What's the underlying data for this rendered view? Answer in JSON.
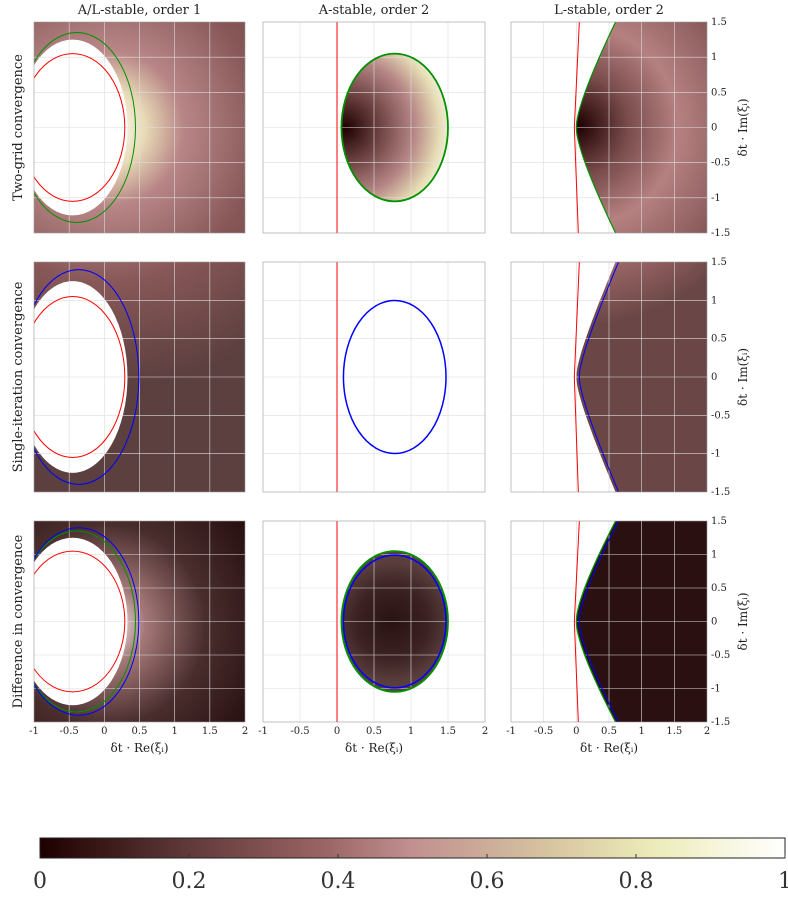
{
  "figure": {
    "column_titles": [
      "A/L-stable, order 1",
      "A-stable, order 2",
      "L-stable, order 2"
    ],
    "row_titles": [
      "Two-grid convergence",
      "Single-iteration convergence",
      "Difference in convergence"
    ],
    "xlabel": "δt · Re(ξᵢ)",
    "ylabel": "δt · Im(ξᵢ)"
  },
  "chart_data": {
    "type": "heatmap",
    "xlim": [
      -1,
      2
    ],
    "ylim": [
      -1.5,
      1.5
    ],
    "x_ticks": [
      "-1",
      "-0.5",
      "0",
      "0.5",
      "1",
      "1.5",
      "2"
    ],
    "y_ticks": [
      "1.5",
      "1",
      "0.5",
      "0",
      "-0.5",
      "-1",
      "-1.5"
    ],
    "grid": true,
    "colormap": [
      "#1e0000",
      "#5a3434",
      "#8d5858",
      "#c99797",
      "#e8dcb0",
      "#ffffff"
    ],
    "colorbar": {
      "range": [
        0,
        1
      ],
      "ticks": [
        "0",
        "0.2",
        "0.4",
        "0.6",
        "0.8",
        "1"
      ]
    },
    "stability_curves": [
      {
        "color": "#ff0000",
        "description": "method stability boundary"
      },
      {
        "color": "#009100",
        "description": "two-grid convergence boundary"
      },
      {
        "color": "#0000ff",
        "description": "single-iteration convergence boundary"
      }
    ],
    "panels": [
      {
        "row": 1,
        "col": 1,
        "method": "A/L-stable, order 1",
        "region": "outside circle |z-(-0.45)|≈0.95"
      },
      {
        "row": 1,
        "col": 2,
        "method": "A-stable, order 2",
        "region": "disk centered (0.78, 0) radius ≈0.7"
      },
      {
        "row": 1,
        "col": 3,
        "method": "L-stable, order 2",
        "region": "right of curved boundary"
      },
      {
        "row": 2,
        "col": 1,
        "method": "A/L-stable, order 1",
        "region": "outside circle"
      },
      {
        "row": 2,
        "col": 2,
        "method": "A-stable, order 2",
        "region": "disk"
      },
      {
        "row": 2,
        "col": 3,
        "method": "L-stable, order 2",
        "region": "right of curved boundary"
      },
      {
        "row": 3,
        "col": 1,
        "method": "A/L-stable, order 1",
        "region": "difference"
      },
      {
        "row": 3,
        "col": 2,
        "method": "A-stable, order 2",
        "region": "difference"
      },
      {
        "row": 3,
        "col": 3,
        "method": "L-stable, order 2",
        "region": "difference"
      }
    ]
  }
}
